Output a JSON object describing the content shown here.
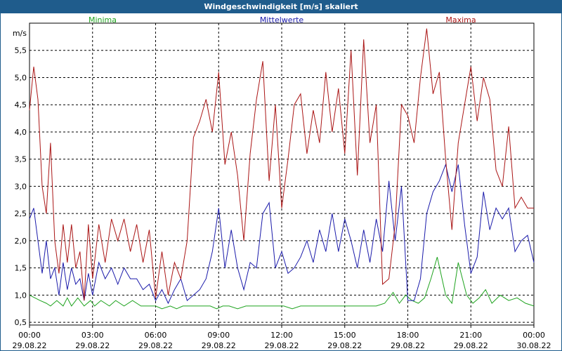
{
  "window": {
    "title": "Windgeschwindigkeit [m/s] skaliert"
  },
  "chart_data": {
    "type": "line",
    "title": "Windgeschwindigkeit [m/s] skaliert",
    "ylabel": "m/s",
    "ylim": [
      0.45,
      6.0
    ],
    "yticks": [
      0.5,
      1.0,
      1.5,
      2.0,
      2.5,
      3.0,
      3.5,
      4.0,
      4.5,
      5.0,
      5.5
    ],
    "ytick_labels": [
      "0,5",
      "1,0",
      "1,5",
      "2,0",
      "2,5",
      "3,0",
      "3,5",
      "4,0",
      "4,5",
      "5,0",
      "5,5"
    ],
    "xlim": [
      0,
      24
    ],
    "xticks": [
      0,
      3,
      6,
      9,
      12,
      15,
      18,
      21,
      24
    ],
    "xtick_labels": [
      {
        "time": "00:00",
        "date": "29.08.22"
      },
      {
        "time": "03:00",
        "date": "29.08.22"
      },
      {
        "time": "06:00",
        "date": "29.08.22"
      },
      {
        "time": "09:00",
        "date": "29.08.22"
      },
      {
        "time": "12:00",
        "date": "29.08.22"
      },
      {
        "time": "15:00",
        "date": "29.08.22"
      },
      {
        "time": "18:00",
        "date": "29.08.22"
      },
      {
        "time": "21:00",
        "date": "29.08.22"
      },
      {
        "time": "00:00",
        "date": "30.08.22"
      }
    ],
    "grid": true,
    "legend_position": "top",
    "series": [
      {
        "name": "Minima",
        "color": "#1fa31f",
        "x": [
          0,
          0.5,
          0.8,
          1,
          1.3,
          1.6,
          1.8,
          2,
          2.3,
          2.6,
          2.9,
          3.1,
          3.4,
          3.8,
          4.1,
          4.5,
          4.9,
          5.3,
          5.7,
          6,
          6.3,
          6.7,
          7,
          7.3,
          7.6,
          8,
          8.3,
          8.6,
          8.9,
          9.2,
          9.5,
          9.9,
          10.3,
          10.7,
          11,
          11.3,
          11.7,
          12.1,
          12.5,
          12.9,
          13.3,
          13.7,
          14.1,
          14.5,
          14.9,
          15.3,
          15.7,
          16.1,
          16.5,
          16.9,
          17.3,
          17.6,
          17.9,
          18.2,
          18.5,
          18.8,
          19.1,
          19.4,
          19.8,
          20.1,
          20.4,
          20.8,
          21.1,
          21.4,
          21.7,
          22,
          22.4,
          22.8,
          23.2,
          23.6,
          24
        ],
        "values": [
          1.0,
          0.9,
          0.85,
          0.8,
          0.9,
          0.8,
          0.95,
          0.8,
          0.95,
          0.8,
          0.9,
          0.8,
          0.9,
          0.8,
          0.9,
          0.8,
          0.9,
          0.8,
          0.8,
          0.8,
          0.75,
          0.8,
          0.75,
          0.8,
          0.8,
          0.8,
          0.8,
          0.8,
          0.75,
          0.8,
          0.8,
          0.75,
          0.8,
          0.8,
          0.8,
          0.8,
          0.8,
          0.8,
          0.75,
          0.8,
          0.8,
          0.8,
          0.8,
          0.8,
          0.8,
          0.8,
          0.8,
          0.8,
          0.8,
          0.85,
          1.05,
          0.85,
          1.0,
          0.9,
          0.85,
          0.95,
          1.3,
          1.7,
          1.0,
          0.85,
          1.6,
          1.0,
          0.85,
          0.95,
          1.1,
          0.85,
          1.0,
          0.9,
          0.95,
          0.85,
          0.8
        ]
      },
      {
        "name": "Mittelwerte",
        "color": "#1a1aaa",
        "x": [
          0,
          0.2,
          0.4,
          0.6,
          0.8,
          1,
          1.2,
          1.4,
          1.6,
          1.8,
          2,
          2.2,
          2.4,
          2.6,
          2.8,
          3,
          3.3,
          3.6,
          3.9,
          4.2,
          4.5,
          4.8,
          5.1,
          5.4,
          5.7,
          6,
          6.3,
          6.6,
          6.9,
          7.2,
          7.5,
          7.8,
          8.1,
          8.4,
          8.7,
          9,
          9.3,
          9.6,
          9.9,
          10.2,
          10.5,
          10.8,
          11.1,
          11.4,
          11.7,
          12,
          12.3,
          12.6,
          12.9,
          13.2,
          13.5,
          13.8,
          14.1,
          14.4,
          14.7,
          15,
          15.3,
          15.6,
          15.9,
          16.2,
          16.5,
          16.8,
          17.1,
          17.4,
          17.7,
          18,
          18.3,
          18.6,
          18.9,
          19.2,
          19.5,
          19.8,
          20.1,
          20.4,
          20.7,
          21,
          21.3,
          21.6,
          21.9,
          22.2,
          22.5,
          22.8,
          23.1,
          23.4,
          23.7,
          24
        ],
        "values": [
          2.4,
          2.6,
          2.0,
          1.4,
          2.0,
          1.3,
          1.5,
          1.0,
          1.6,
          1.1,
          1.5,
          1.2,
          1.3,
          0.9,
          1.4,
          1.0,
          1.6,
          1.3,
          1.5,
          1.2,
          1.5,
          1.3,
          1.3,
          1.1,
          1.2,
          0.9,
          1.1,
          0.85,
          1.1,
          1.3,
          0.9,
          1.0,
          1.1,
          1.3,
          1.8,
          2.6,
          1.5,
          2.2,
          1.5,
          1.1,
          1.6,
          1.5,
          2.5,
          2.7,
          1.5,
          1.8,
          1.4,
          1.5,
          1.7,
          2.0,
          1.6,
          2.2,
          1.8,
          2.5,
          1.8,
          2.4,
          2.0,
          1.5,
          2.2,
          1.6,
          2.4,
          1.8,
          3.1,
          2.0,
          3.0,
          0.9,
          0.9,
          1.3,
          2.5,
          2.9,
          3.1,
          3.4,
          2.9,
          3.4,
          2.3,
          1.4,
          1.7,
          2.9,
          2.2,
          2.6,
          2.4,
          2.6,
          1.8,
          2.0,
          2.1,
          1.6
        ]
      },
      {
        "name": "Maxima",
        "color": "#aa1515",
        "x": [
          0,
          0.2,
          0.4,
          0.6,
          0.8,
          1,
          1.2,
          1.4,
          1.6,
          1.8,
          2,
          2.2,
          2.4,
          2.6,
          2.8,
          3,
          3.3,
          3.6,
          3.9,
          4.2,
          4.5,
          4.8,
          5.1,
          5.4,
          5.7,
          6,
          6.3,
          6.6,
          6.9,
          7.2,
          7.5,
          7.8,
          8.1,
          8.4,
          8.7,
          9,
          9.3,
          9.6,
          9.9,
          10.2,
          10.5,
          10.8,
          11.1,
          11.4,
          11.7,
          12,
          12.3,
          12.6,
          12.9,
          13.2,
          13.5,
          13.8,
          14.1,
          14.4,
          14.7,
          15,
          15.3,
          15.6,
          15.9,
          16.2,
          16.5,
          16.8,
          17.1,
          17.4,
          17.7,
          18,
          18.3,
          18.6,
          18.9,
          19.2,
          19.5,
          19.8,
          20.1,
          20.4,
          20.7,
          21,
          21.3,
          21.6,
          21.9,
          22.2,
          22.5,
          22.8,
          23.1,
          23.4,
          23.7,
          24
        ],
        "values": [
          4.4,
          5.2,
          4.6,
          3.0,
          2.5,
          3.8,
          2.0,
          1.4,
          2.3,
          1.6,
          2.3,
          1.5,
          1.8,
          0.9,
          2.3,
          1.3,
          2.3,
          1.6,
          2.4,
          2.0,
          2.4,
          1.8,
          2.3,
          1.6,
          2.2,
          0.95,
          1.8,
          1.0,
          1.6,
          1.3,
          2.0,
          3.9,
          4.2,
          4.6,
          4.0,
          5.1,
          3.4,
          4.0,
          3.2,
          2.0,
          3.6,
          4.6,
          5.3,
          3.1,
          4.5,
          2.6,
          3.5,
          4.5,
          4.7,
          3.6,
          4.4,
          3.8,
          5.1,
          4.0,
          4.8,
          3.6,
          5.5,
          3.2,
          5.7,
          3.8,
          4.5,
          1.2,
          1.3,
          2.3,
          4.5,
          4.3,
          3.8,
          5.0,
          5.9,
          4.7,
          5.1,
          3.5,
          2.2,
          3.8,
          4.5,
          5.2,
          4.2,
          5.0,
          4.6,
          3.3,
          3.0,
          4.1,
          2.6,
          2.8,
          2.6,
          2.6
        ]
      }
    ]
  }
}
